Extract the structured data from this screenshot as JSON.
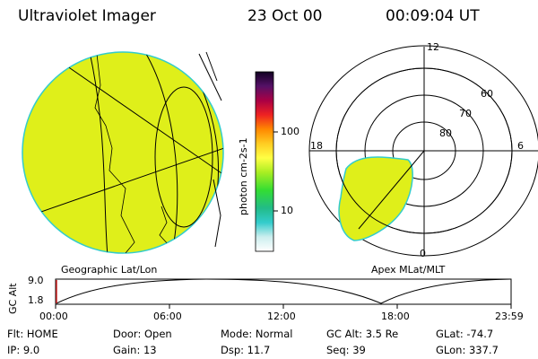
{
  "header": {
    "instrument": "Ultraviolet Imager",
    "date": "23 Oct 00",
    "time": "00:09:04 UT"
  },
  "colorbar": {
    "unit_label": "photon cm-2s-1",
    "ticks": [
      "100",
      "10"
    ]
  },
  "panels": {
    "left_label": "Geographic Lat/Lon",
    "right_label": "Apex MLat/MLT"
  },
  "polar_plot": {
    "mlt_labels": {
      "top": "12",
      "left": "18",
      "right": "6",
      "bottom": "0"
    },
    "lat_labels": [
      "60",
      "70",
      "80"
    ]
  },
  "altitude_plot": {
    "ylabel": "GC Alt",
    "yticks": [
      "9.0",
      "1.8"
    ],
    "xticks": [
      "00:00",
      "06:00",
      "12:00",
      "18:00",
      "23:59"
    ]
  },
  "status": {
    "flt": "Flt: HOME",
    "ip": "IP: 9.0",
    "door": "Door: Open",
    "gain": "Gain: 13",
    "mode": "Mode: Normal",
    "dsp": "Dsp:   11.7",
    "gc_alt": "GC Alt: 3.5 Re",
    "seq": "Seq: 39",
    "glat": "GLat: -74.7",
    "glon": "GLon: 337.7"
  },
  "colors": {
    "aurora_fill": "#dfef1a",
    "aurora_edge": "#33cccc"
  }
}
